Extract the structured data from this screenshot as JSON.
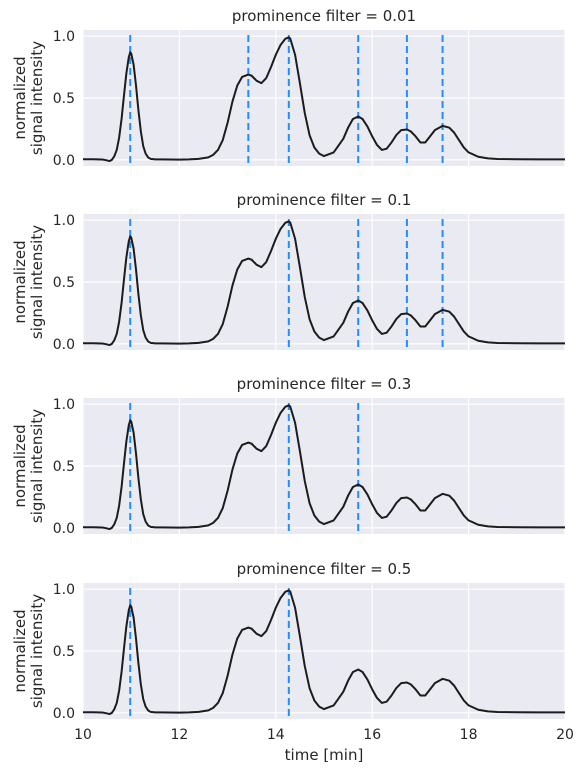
{
  "chart_data": [
    {
      "type": "line",
      "title": "prominence filter = 0.01",
      "ylabel": [
        "normalized",
        "signal intensity"
      ],
      "xlabel": "",
      "xlim": [
        10,
        20
      ],
      "ylim": [
        -0.05,
        1.05
      ],
      "yticks": [
        "0.0",
        "0.5",
        "1.0"
      ],
      "xticklabels_visible": false,
      "peak_markers_x": [
        10.98,
        13.43,
        14.27,
        15.71,
        16.72,
        17.46
      ]
    },
    {
      "type": "line",
      "title": "prominence filter = 0.1",
      "ylabel": [
        "normalized",
        "signal intensity"
      ],
      "xlabel": "",
      "xlim": [
        10,
        20
      ],
      "ylim": [
        -0.05,
        1.05
      ],
      "yticks": [
        "0.0",
        "0.5",
        "1.0"
      ],
      "xticklabels_visible": false,
      "peak_markers_x": [
        10.98,
        14.27,
        15.71,
        16.72,
        17.46
      ]
    },
    {
      "type": "line",
      "title": "prominence filter = 0.3",
      "ylabel": [
        "normalized",
        "signal intensity"
      ],
      "xlabel": "",
      "xlim": [
        10,
        20
      ],
      "ylim": [
        -0.05,
        1.05
      ],
      "yticks": [
        "0.0",
        "0.5",
        "1.0"
      ],
      "xticklabels_visible": false,
      "peak_markers_x": [
        10.98,
        14.27,
        15.71
      ]
    },
    {
      "type": "line",
      "title": "prominence filter = 0.5",
      "ylabel": [
        "normalized",
        "signal intensity"
      ],
      "xlabel": "time [min]",
      "xlim": [
        10,
        20
      ],
      "ylim": [
        -0.05,
        1.05
      ],
      "yticks": [
        "0.0",
        "0.5",
        "1.0"
      ],
      "xticks": [
        "10",
        "12",
        "14",
        "16",
        "18",
        "20"
      ],
      "xticklabels_visible": true,
      "peak_markers_x": [
        10.98,
        14.27
      ]
    }
  ],
  "signal": {
    "x": [
      10.0,
      10.2,
      10.4,
      10.5,
      10.55,
      10.6,
      10.65,
      10.7,
      10.75,
      10.8,
      10.85,
      10.9,
      10.95,
      10.98,
      11.0,
      11.05,
      11.1,
      11.15,
      11.2,
      11.25,
      11.3,
      11.35,
      11.4,
      11.5,
      11.6,
      11.8,
      12.0,
      12.2,
      12.4,
      12.6,
      12.7,
      12.8,
      12.9,
      13.0,
      13.1,
      13.2,
      13.3,
      13.43,
      13.5,
      13.6,
      13.7,
      13.8,
      13.9,
      14.0,
      14.1,
      14.2,
      14.27,
      14.3,
      14.4,
      14.5,
      14.6,
      14.7,
      14.8,
      14.9,
      15.0,
      15.2,
      15.4,
      15.5,
      15.6,
      15.71,
      15.8,
      15.9,
      16.0,
      16.1,
      16.2,
      16.3,
      16.4,
      16.5,
      16.6,
      16.72,
      16.8,
      16.9,
      17.0,
      17.1,
      17.2,
      17.3,
      17.46,
      17.6,
      17.7,
      17.8,
      17.9,
      18.0,
      18.2,
      18.4,
      18.6,
      19.0,
      19.5,
      20.0
    ],
    "y": [
      0.005,
      0.005,
      0.003,
      -0.005,
      -0.01,
      0.0,
      0.03,
      0.08,
      0.18,
      0.33,
      0.52,
      0.7,
      0.83,
      0.87,
      0.86,
      0.77,
      0.6,
      0.4,
      0.23,
      0.11,
      0.05,
      0.02,
      0.008,
      0.004,
      0.004,
      0.003,
      0.002,
      0.004,
      0.008,
      0.02,
      0.04,
      0.08,
      0.16,
      0.3,
      0.47,
      0.6,
      0.67,
      0.69,
      0.68,
      0.64,
      0.62,
      0.66,
      0.75,
      0.85,
      0.93,
      0.98,
      0.99,
      0.98,
      0.85,
      0.62,
      0.38,
      0.2,
      0.1,
      0.05,
      0.03,
      0.06,
      0.17,
      0.26,
      0.33,
      0.35,
      0.33,
      0.27,
      0.19,
      0.12,
      0.08,
      0.09,
      0.14,
      0.2,
      0.24,
      0.245,
      0.23,
      0.19,
      0.14,
      0.14,
      0.19,
      0.24,
      0.275,
      0.26,
      0.22,
      0.16,
      0.1,
      0.06,
      0.025,
      0.012,
      0.007,
      0.005,
      0.004,
      0.004
    ],
    "line_color": "#1c1c1c"
  },
  "style": {
    "axes_bg": "#eaeaf2",
    "grid_color": "#ffffff",
    "marker_color": "#1f8fff",
    "text_color": "#262626"
  }
}
